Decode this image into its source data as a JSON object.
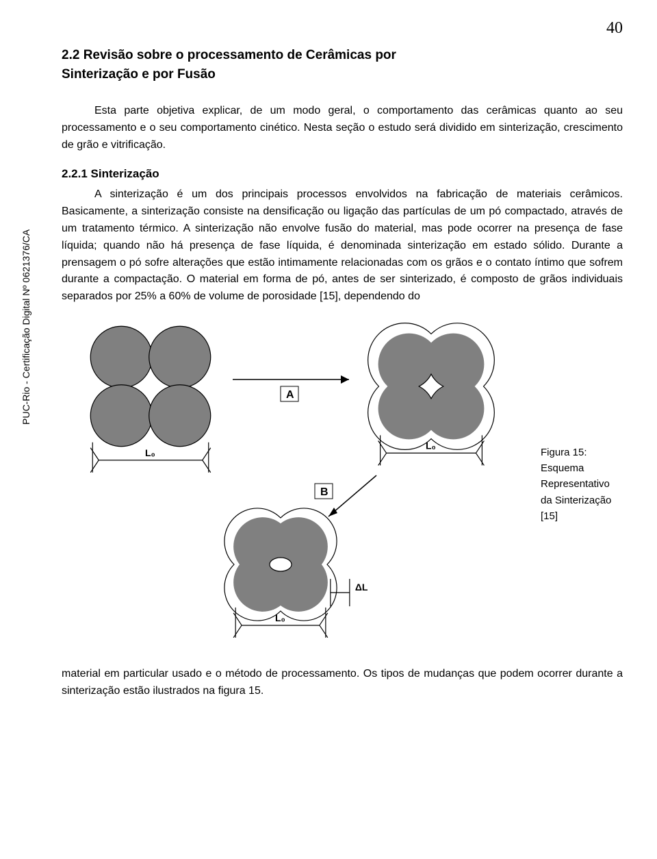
{
  "page_number": "40",
  "vertical_label": "PUC-Rio - Certificação Digital Nº 0621376/CA",
  "section_heading_line1": "2.2  Revisão  sobre  o  processamento  de  Cerâmicas     por",
  "section_heading_line2": "Sinterização e por Fusão",
  "intro_paragraph": "Esta parte objetiva explicar, de um modo geral, o comportamento das cerâmicas quanto  ao seu processamento  e o seu comportamento cinético. Nesta seção o estudo será dividido em sinterização, crescimento de grão e vitrificação.",
  "subsection_heading": "2.2.1 Sinterização",
  "main_paragraph": "A sinterização é um dos principais processos envolvidos na fabricação de materiais cerâmicos. Basicamente, a sinterização consiste na densificação ou ligação das partículas de um pó compactado, através de um tratamento térmico. A  sinterização não envolve fusão do material, mas pode ocorrer na presença de fase líquida; quando não há presença de fase líquida, é denominada sinterização em estado sólido. Durante a prensagem o pó sofre alterações que estão intimamente relacionadas com os grãos e o contato  íntimo que sofrem durante a compactação. O material em forma de pó, antes de ser sinterizado, é composto de grãos individuais separados por 25% a 60% de volume de porosidade [15], dependendo do",
  "figure": {
    "type": "diagram",
    "caption_lines": [
      "Figura 15:",
      "Esquema",
      "Representativo",
      "da Sinterização",
      "[15]"
    ],
    "labels": {
      "A": "A",
      "B": "B",
      "L0": "L₀",
      "dL": "ΔL"
    },
    "colors": {
      "particle_fill": "#808080",
      "particle_stroke": "#000000",
      "line_stroke": "#000000",
      "background": "#ffffff",
      "label_box_fill": "#ffffff",
      "label_box_stroke": "#000000"
    },
    "stroke_width": 1.2,
    "particle_radius": 45,
    "dimension_font_size": 14,
    "label_font_size": 16
  },
  "closing_paragraph": "material em particular usado e o método de processamento. Os tipos de mudanças que podem ocorrer durante a sinterização estão ilustrados na figura 15."
}
